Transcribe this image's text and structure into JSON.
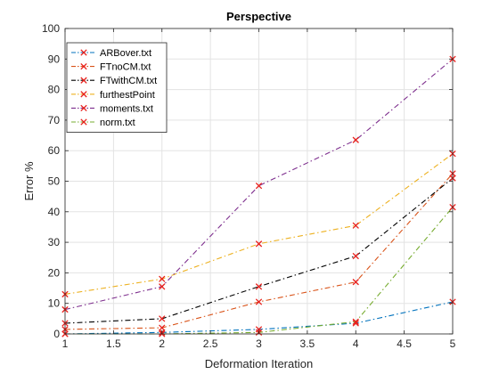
{
  "chart_data": {
    "type": "line",
    "title": "Perspective",
    "xlabel": "Deformation Iteration",
    "ylabel": "Error %",
    "xlim": [
      1,
      5
    ],
    "ylim": [
      0,
      100
    ],
    "xticks": [
      1,
      1.5,
      2,
      2.5,
      3,
      3.5,
      4,
      4.5,
      5
    ],
    "yticks": [
      0,
      10,
      20,
      30,
      40,
      50,
      60,
      70,
      80,
      90,
      100
    ],
    "grid": true,
    "legend_position": "top-left",
    "marker": "x",
    "marker_color": "#e8201c",
    "x": [
      1,
      2,
      3,
      4,
      5
    ],
    "series": [
      {
        "name": "ARBover.txt",
        "color": "#0072bd",
        "values": [
          0,
          0.5,
          1.5,
          3.5,
          10.5
        ]
      },
      {
        "name": "FTnoCM.txt",
        "color": "#d95319",
        "values": [
          1.5,
          2,
          10.5,
          17,
          52.5
        ]
      },
      {
        "name": "FTwithCM.txt",
        "color": "#000000",
        "values": [
          3.5,
          5,
          15.5,
          25.5,
          51
        ]
      },
      {
        "name": "furthestPoint",
        "color": "#edb120",
        "values": [
          13,
          18,
          29.5,
          35.5,
          59
        ]
      },
      {
        "name": "moments.txt",
        "color": "#7e2f8e",
        "values": [
          8,
          15.5,
          48.5,
          63.5,
          90
        ]
      },
      {
        "name": "norm.txt",
        "color": "#77ac30",
        "values": [
          0,
          0,
          0.5,
          4,
          41.5
        ]
      }
    ]
  }
}
